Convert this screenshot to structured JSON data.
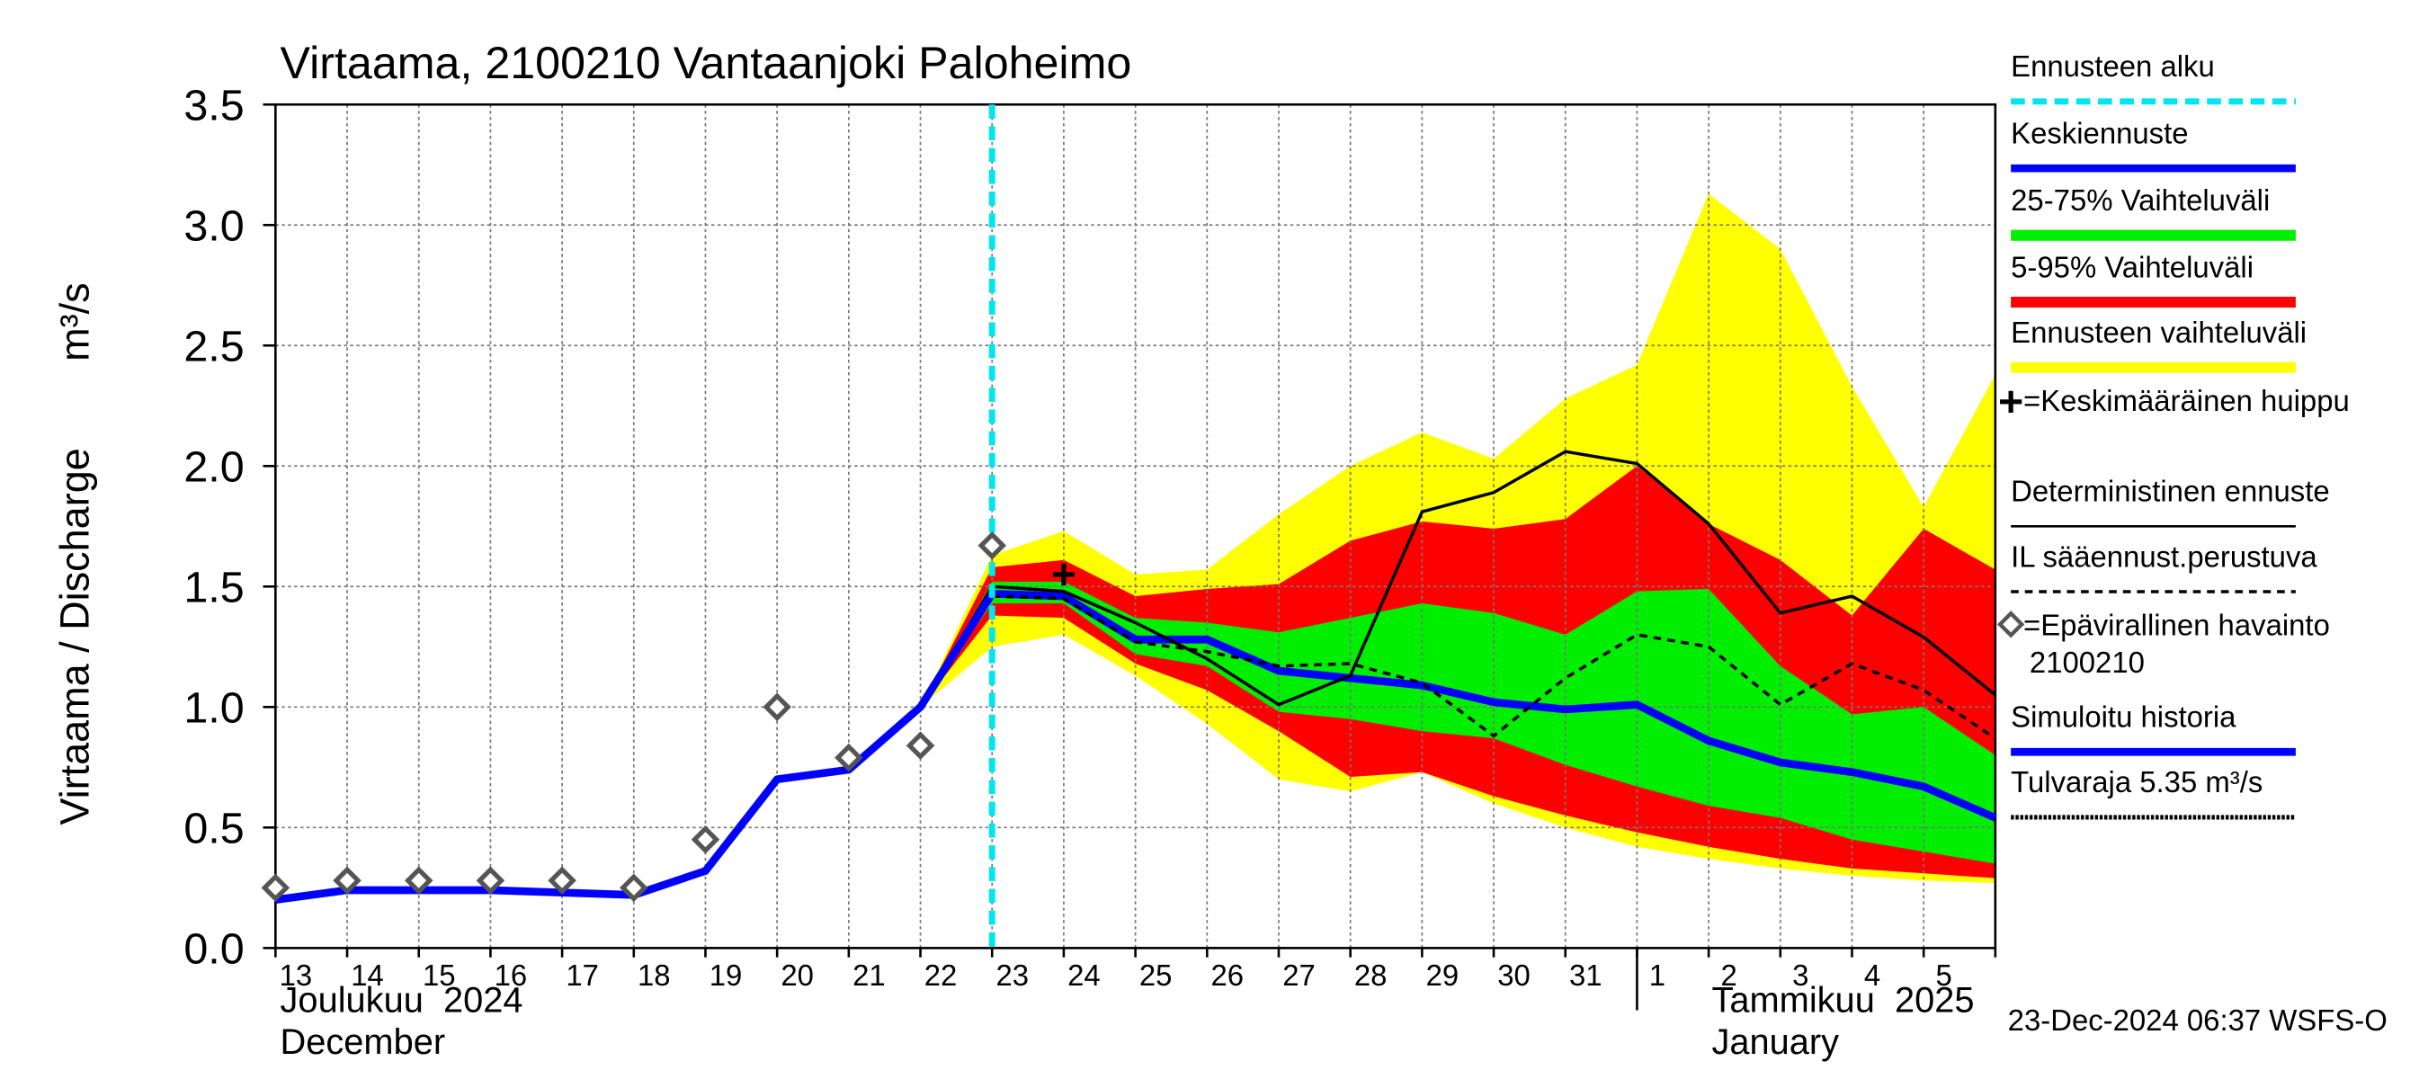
{
  "chart_data": {
    "type": "line",
    "title": "Virtaama, 2100210 Vantaanjoki Paloheimo",
    "y_label": "Virtaama / Discharge",
    "y_unit": "m³/s",
    "months": [
      {
        "fi": "Joulukuu  2024",
        "en": "December"
      },
      {
        "fi": "Tammikuu  2025",
        "en": "January"
      }
    ],
    "timestamp": "23-Dec-2024 06:37 WSFS-O",
    "categories": [
      "13",
      "14",
      "15",
      "16",
      "17",
      "18",
      "19",
      "20",
      "21",
      "22",
      "23",
      "24",
      "25",
      "26",
      "27",
      "28",
      "29",
      "30",
      "31",
      "1",
      "2",
      "3",
      "4",
      "5",
      null
    ],
    "ylim": [
      0,
      3.5
    ],
    "yticks": [
      {
        "value": 0,
        "label": "0.0"
      },
      0.5,
      {
        "value": 1,
        "label": "1.0"
      },
      1.5,
      {
        "value": 2,
        "label": "2.0"
      },
      2.5,
      {
        "value": 3,
        "label": "3.0"
      },
      3.5
    ],
    "grid": true,
    "forecast_start": {
      "name": "Ennusteen alku",
      "color": "#00e5ee",
      "index": 10
    },
    "bands": [
      {
        "name": "Ennusteen vaihteluväli",
        "color": "#ffff00",
        "low": [
          null,
          null,
          null,
          null,
          null,
          null,
          null,
          null,
          null,
          1.0,
          1.25,
          1.3,
          1.13,
          0.93,
          0.7,
          0.65,
          0.73,
          0.6,
          0.5,
          0.42,
          0.37,
          0.33,
          0.3,
          0.28,
          0.27
        ],
        "high": [
          null,
          null,
          null,
          null,
          null,
          null,
          null,
          null,
          null,
          1.0,
          1.63,
          1.73,
          1.55,
          1.57,
          1.8,
          2.0,
          2.14,
          2.03,
          2.28,
          2.42,
          3.13,
          2.9,
          2.33,
          1.83,
          2.38
        ]
      },
      {
        "name": "5-95% Vaihteluväli",
        "color": "#ff0000",
        "low": [
          null,
          null,
          null,
          null,
          null,
          null,
          null,
          null,
          null,
          1.0,
          1.38,
          1.37,
          1.18,
          1.07,
          0.9,
          0.71,
          0.73,
          0.63,
          0.55,
          0.48,
          0.42,
          0.37,
          0.33,
          0.31,
          0.29
        ],
        "high": [
          null,
          null,
          null,
          null,
          null,
          null,
          null,
          null,
          null,
          1.0,
          1.58,
          1.61,
          1.46,
          1.49,
          1.51,
          1.69,
          1.77,
          1.74,
          1.78,
          2.0,
          1.76,
          1.61,
          1.38,
          1.74,
          1.57
        ]
      },
      {
        "name": "25-75% Vaihteluväli",
        "color": "#00ee00",
        "low": [
          null,
          null,
          null,
          null,
          null,
          null,
          null,
          null,
          null,
          1.0,
          1.43,
          1.43,
          1.22,
          1.17,
          0.98,
          0.95,
          0.9,
          0.87,
          0.76,
          0.67,
          0.59,
          0.54,
          0.45,
          0.4,
          0.35
        ],
        "high": [
          null,
          null,
          null,
          null,
          null,
          null,
          null,
          null,
          null,
          1.0,
          1.52,
          1.52,
          1.37,
          1.35,
          1.31,
          1.37,
          1.43,
          1.39,
          1.3,
          1.48,
          1.49,
          1.17,
          0.97,
          1.0,
          0.8
        ]
      }
    ],
    "series": [
      {
        "name": "Keskiennuste",
        "color": "#0000ff",
        "style": "thick",
        "values": [
          null,
          null,
          null,
          null,
          null,
          null,
          null,
          null,
          null,
          null,
          1.47,
          1.46,
          1.28,
          1.28,
          1.15,
          1.12,
          1.09,
          1.02,
          0.99,
          1.01,
          0.86,
          0.77,
          0.73,
          0.67,
          0.54
        ]
      },
      {
        "name": "Deterministinen ennuste",
        "color": "#000000",
        "style": "solid",
        "values": [
          null,
          null,
          null,
          null,
          null,
          null,
          null,
          null,
          null,
          1.0,
          1.5,
          1.48,
          1.35,
          1.2,
          1.01,
          1.13,
          1.81,
          1.89,
          2.06,
          2.01,
          1.76,
          1.39,
          1.46,
          1.29,
          1.05
        ]
      },
      {
        "name": "IL sääennust.perustuva",
        "color": "#000000",
        "style": "dashed",
        "values": [
          null,
          null,
          null,
          null,
          null,
          null,
          null,
          null,
          null,
          null,
          1.46,
          1.45,
          1.27,
          1.23,
          1.17,
          1.18,
          1.1,
          0.88,
          1.12,
          1.3,
          1.25,
          1.01,
          1.18,
          1.07,
          0.87
        ]
      },
      {
        "name": "Simuloitu historia",
        "color": "#0000ff",
        "style": "thick",
        "values": [
          0.2,
          0.24,
          0.24,
          0.24,
          0.23,
          0.22,
          0.32,
          0.7,
          0.74,
          1.0,
          1.47,
          null,
          null,
          null,
          null,
          null,
          null,
          null,
          null,
          null,
          null,
          null,
          null,
          null,
          null
        ]
      }
    ],
    "observations": {
      "name": "=Epävirallinen havainto",
      "station": "2100210",
      "color": "#555555",
      "values": [
        0.25,
        0.28,
        0.28,
        0.28,
        0.28,
        0.25,
        0.45,
        1.0,
        0.79,
        0.84,
        1.67,
        null,
        null,
        null,
        null,
        null,
        null,
        null,
        null,
        null,
        null,
        null,
        null,
        null,
        null
      ]
    },
    "mean_peak": {
      "name": "=Keskimääräinen huippu",
      "index": 11,
      "value": 1.55
    },
    "flood_limit": {
      "name": "Tulvaraja 5.35 m³/s"
    }
  }
}
